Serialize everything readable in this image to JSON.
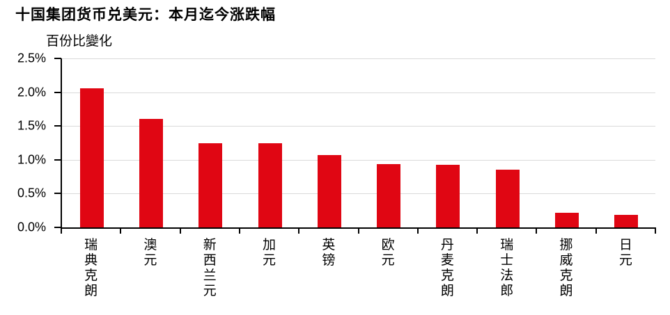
{
  "chart_data": {
    "type": "bar",
    "title": "十国集团货币兑美元：本月迄今涨跌幅",
    "ylabel": "百份比變化",
    "xlabel": "",
    "categories": [
      "瑞典克朗",
      "澳元",
      "新西兰元",
      "加元",
      "英镑",
      "欧元",
      "丹麦克朗",
      "瑞士法郎",
      "挪威克朗",
      "日元"
    ],
    "values": [
      2.06,
      1.6,
      1.25,
      1.24,
      1.07,
      0.94,
      0.93,
      0.85,
      0.22,
      0.19
    ],
    "ylim": [
      0,
      2.5
    ],
    "ytick_step": 0.5,
    "ytick_labels": [
      "0.0%",
      "0.5%",
      "1.0%",
      "1.5%",
      "2.0%",
      "2.5%"
    ],
    "grid": true,
    "legend": "none",
    "bar_color": "#e00613",
    "gridline_color": "#d9d9d9",
    "axis_color": "#000000",
    "text_color": "#000000"
  }
}
